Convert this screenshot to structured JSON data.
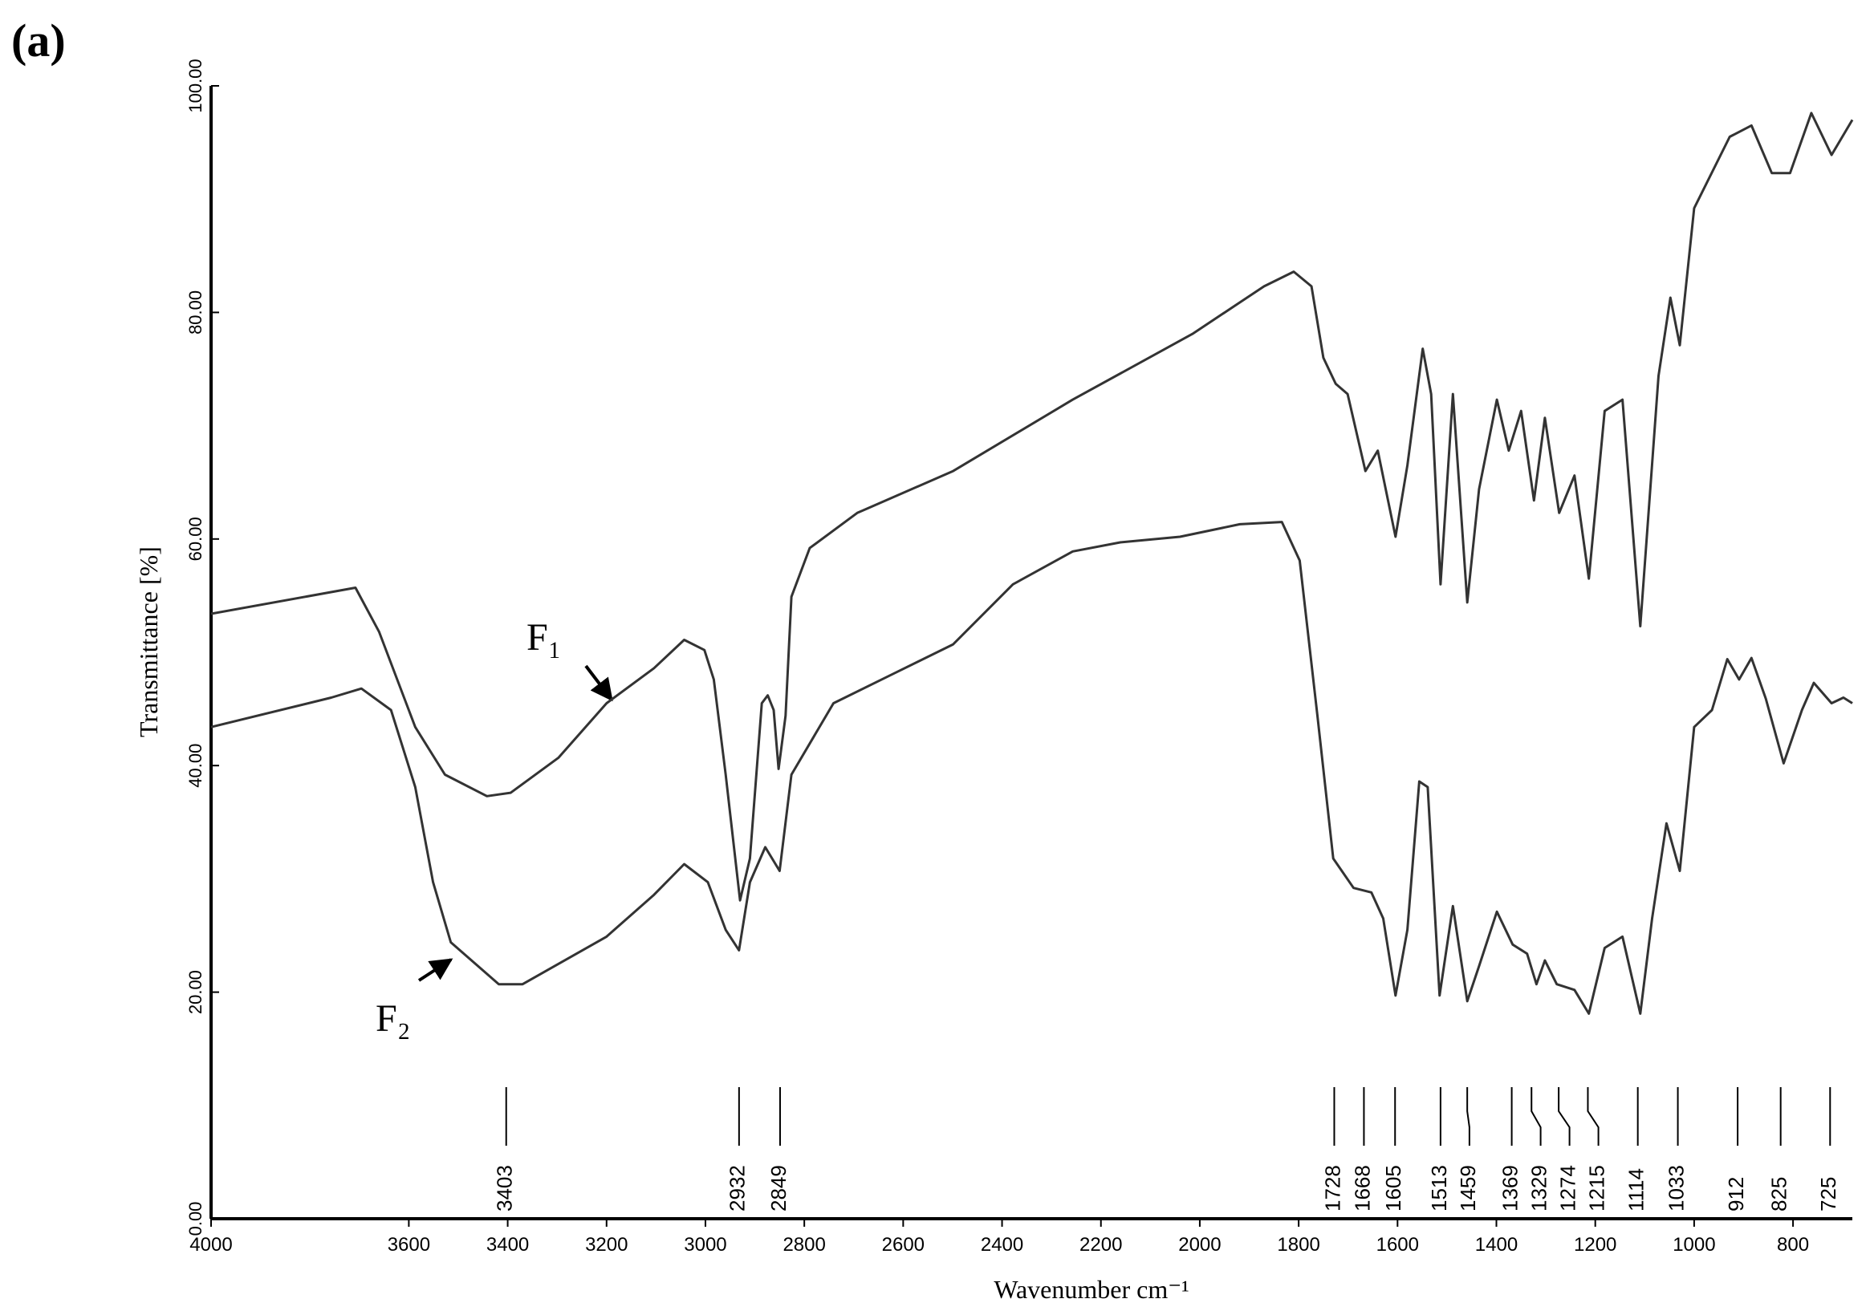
{
  "chart_data": {
    "type": "line",
    "title": "(a)",
    "x_label": "Wavenumber cm⁻¹",
    "y_label": "Transmittance [%]",
    "xlim": [
      4000,
      680
    ],
    "ylim": [
      0,
      100
    ],
    "xticks": [
      4000,
      3600,
      3400,
      3200,
      3000,
      2800,
      2600,
      2400,
      2200,
      2000,
      1800,
      1600,
      1400,
      1200,
      1000,
      800
    ],
    "yticks": [
      {
        "value": 0,
        "label": "0.00"
      },
      {
        "value": 20,
        "label": "20.00"
      },
      {
        "value": 40,
        "label": "40.00"
      },
      {
        "value": 60,
        "label": "60.00"
      },
      {
        "value": 80,
        "label": "80.00"
      },
      {
        "value": 100,
        "label": "100.00"
      }
    ],
    "color": "#333333",
    "annotations": [
      "F₁",
      "F₂"
    ],
    "peaks": [
      3403,
      2932,
      2849,
      1728,
      1668,
      1605,
      1513,
      1459,
      1369,
      1329,
      1274,
      1215,
      1114,
      1033,
      912,
      825,
      725
    ],
    "series": [
      {
        "x": [
          4000,
          3708,
          3660,
          3587,
          3527,
          3442,
          3394,
          3297,
          3200,
          3104,
          3043,
          3002,
          2983,
          2959,
          2930,
          2910,
          2886,
          2874,
          2862,
          2852,
          2838,
          2826,
          2789,
          2693,
          2499,
          2257,
          2015,
          1870,
          1810,
          1774,
          1750,
          1725,
          1701,
          1665,
          1640,
          1604,
          1580,
          1549,
          1532,
          1513,
          1488,
          1459,
          1435,
          1399,
          1375,
          1350,
          1324,
          1302,
          1273,
          1242,
          1213,
          1181,
          1145,
          1109,
          1072,
          1048,
          1029,
          1000,
          928,
          884,
          843,
          806,
          763,
          722,
          680
        ],
        "values": [
          53.4,
          55.7,
          51.8,
          43.4,
          39.2,
          37.3,
          37.6,
          40.7,
          45.5,
          48.6,
          51.1,
          50.2,
          47.6,
          39.2,
          28.1,
          31.8,
          45.5,
          46.2,
          44.9,
          39.7,
          44.4,
          54.9,
          59.2,
          62.3,
          66,
          72.3,
          78.1,
          82.3,
          83.6,
          82.3,
          76,
          73.7,
          72.8,
          66,
          67.8,
          60.2,
          66.5,
          76.8,
          72.8,
          56,
          72.8,
          54.4,
          64.4,
          72.3,
          67.8,
          71.3,
          63.4,
          70.7,
          62.3,
          65.6,
          56.5,
          71.3,
          72.3,
          52.3,
          74.4,
          81.3,
          77.1,
          89.2,
          95.5,
          96.5,
          92.3,
          92.3,
          97.6,
          93.9,
          97
        ]
      },
      {
        "x": [
          4000,
          3757,
          3696,
          3636,
          3587,
          3551,
          3515,
          3418,
          3370,
          3200,
          3104,
          3043,
          2995,
          2959,
          2932,
          2910,
          2879,
          2850,
          2826,
          2741,
          2620,
          2499,
          2378,
          2257,
          2161,
          2040,
          1919,
          1834,
          1798,
          1762,
          1730,
          1689,
          1653,
          1629,
          1604,
          1580,
          1556,
          1539,
          1515,
          1488,
          1459,
          1435,
          1399,
          1367,
          1338,
          1319,
          1302,
          1278,
          1242,
          1213,
          1181,
          1145,
          1109,
          1085,
          1056,
          1029,
          1000,
          964,
          933,
          909,
          884,
          855,
          819,
          782,
          758,
          722,
          698,
          680
        ],
        "values": [
          43.4,
          46,
          46.8,
          44.9,
          38.1,
          29.7,
          24.4,
          20.7,
          20.7,
          24.9,
          28.6,
          31.3,
          29.7,
          25.5,
          23.7,
          29.7,
          32.8,
          30.7,
          39.2,
          45.5,
          48.1,
          50.7,
          56,
          58.9,
          59.7,
          60.2,
          61.3,
          61.5,
          58.1,
          44.4,
          31.8,
          29.2,
          28.8,
          26.5,
          19.7,
          25.5,
          38.6,
          38.1,
          19.7,
          27.6,
          19.2,
          22.3,
          27.1,
          24.2,
          23.4,
          20.7,
          22.8,
          20.7,
          20.2,
          18.1,
          23.9,
          24.9,
          18.1,
          26.5,
          34.9,
          30.7,
          43.4,
          44.9,
          49.4,
          47.6,
          49.5,
          45.9,
          40.2,
          44.9,
          47.3,
          45.5,
          46,
          45.5
        ]
      }
    ]
  }
}
